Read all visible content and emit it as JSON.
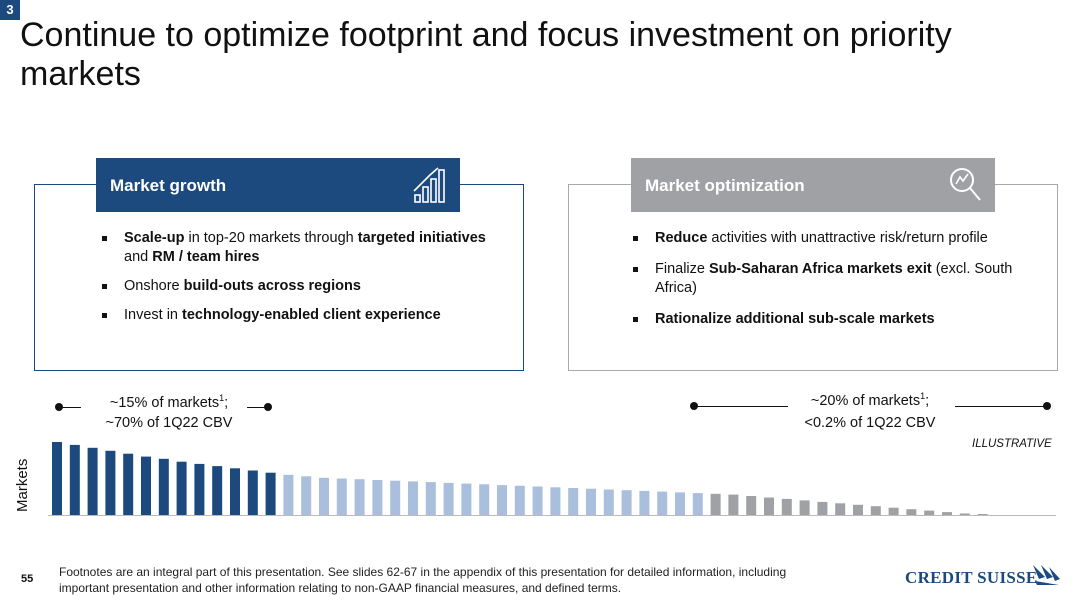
{
  "header": {
    "section_number": "3",
    "title": "Continue to optimize footprint and focus investment on priority markets"
  },
  "growth_panel": {
    "heading": "Market growth",
    "icon": "growth-chart-icon",
    "bullets": [
      {
        "parts": [
          {
            "t": "Scale-up",
            "b": true
          },
          {
            "t": " in top-20 markets through ",
            "b": false
          },
          {
            "t": "targeted initiatives",
            "b": true
          },
          {
            "t": " and ",
            "b": false
          },
          {
            "t": "RM / team hires",
            "b": true
          }
        ]
      },
      {
        "parts": [
          {
            "t": "Onshore ",
            "b": false
          },
          {
            "t": "build-outs across regions",
            "b": true
          }
        ]
      },
      {
        "parts": [
          {
            "t": "Invest in ",
            "b": false
          },
          {
            "t": "technology-enabled client experience",
            "b": true
          }
        ]
      }
    ]
  },
  "optimization_panel": {
    "heading": "Market optimization",
    "icon": "magnifier-trend-icon",
    "bullets": [
      {
        "parts": [
          {
            "t": "Reduce",
            "b": true
          },
          {
            "t": " activities with unattractive risk/return profile",
            "b": false
          }
        ]
      },
      {
        "parts": [
          {
            "t": "Finalize ",
            "b": false
          },
          {
            "t": "Sub-Saharan Africa markets exit",
            "b": true
          },
          {
            "t": " (excl. South Africa)",
            "b": false
          }
        ]
      },
      {
        "parts": [
          {
            "t": "Rationalize additional sub-scale markets",
            "b": true
          }
        ]
      }
    ]
  },
  "stats": {
    "left_line1": "~15% of markets",
    "left_sup": "1",
    "left_line1_end": ";",
    "left_line2": "~70% of 1Q22 CBV",
    "right_line1": "~20% of markets",
    "right_sup": "1",
    "right_line1_end": ";",
    "right_line2": "<0.2% of 1Q22 CBV"
  },
  "illustrative": "ILLUSTRATIVE",
  "chart_data": {
    "type": "bar",
    "ylabel": "Markets",
    "values": [
      100,
      96,
      92,
      88,
      84,
      80,
      77,
      73,
      70,
      67,
      64,
      61,
      58,
      55,
      53,
      51,
      50,
      49,
      48,
      47,
      46,
      45,
      44,
      43,
      42,
      41,
      40,
      39,
      38,
      37,
      36,
      35,
      34,
      33,
      32,
      31,
      30,
      29,
      28,
      26,
      24,
      22,
      20,
      18,
      16,
      14,
      12,
      10,
      8,
      6,
      4,
      2,
      1
    ],
    "groups": [
      {
        "name": "growth",
        "count": 13,
        "color": "#1c4a7f"
      },
      {
        "name": "middle",
        "count": 24,
        "color": "#a9bfdb"
      },
      {
        "name": "optimization",
        "count": 16,
        "color": "#a0a1a5"
      }
    ]
  },
  "footer": {
    "page_number": "55",
    "footnote": "Footnotes are an integral part of this presentation. See slides 62-67 in the appendix of this presentation for detailed information, including important presentation and other information relating to non-GAAP financial measures, and defined terms.",
    "logo_text": "CREDIT SUISSE"
  },
  "colors": {
    "brand_blue": "#1c4a7f",
    "light_blue": "#a9bfdb",
    "grey": "#a0a1a5"
  }
}
